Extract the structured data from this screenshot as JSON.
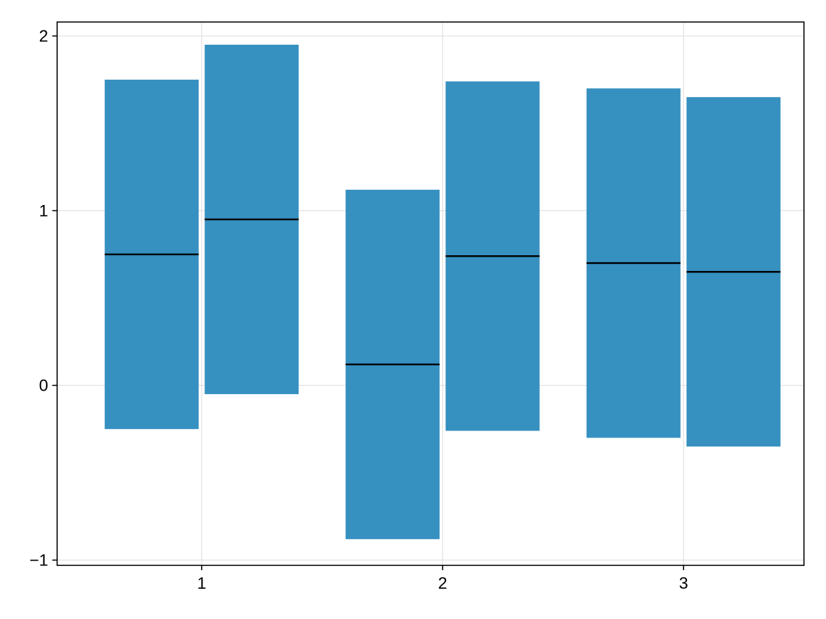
{
  "chart_data": {
    "type": "crossbar",
    "title": "",
    "xlabel": "",
    "ylabel": "",
    "xlim": [
      0.4,
      3.5
    ],
    "ylim": [
      -1.03,
      2.08
    ],
    "x_ticks": [
      1,
      2,
      3
    ],
    "x_tick_labels": [
      "1",
      "2",
      "3"
    ],
    "y_ticks": [
      -1,
      0,
      1,
      2
    ],
    "y_tick_labels": [
      "−1",
      "0",
      "1",
      "2"
    ],
    "grid": true,
    "bar_color": "#3690c0",
    "median_color": "#000000",
    "grid_color": "#e0e0e0",
    "boxes": [
      {
        "group": 1,
        "dodge": 1,
        "low": -0.25,
        "mid": 0.75,
        "high": 1.75
      },
      {
        "group": 1,
        "dodge": 2,
        "low": -0.05,
        "mid": 0.95,
        "high": 1.95
      },
      {
        "group": 2,
        "dodge": 1,
        "low": -0.88,
        "mid": 0.12,
        "high": 1.12
      },
      {
        "group": 2,
        "dodge": 2,
        "low": -0.26,
        "mid": 0.74,
        "high": 1.74
      },
      {
        "group": 3,
        "dodge": 1,
        "low": -0.3,
        "mid": 0.7,
        "high": 1.7
      },
      {
        "group": 3,
        "dodge": 2,
        "low": -0.35,
        "mid": 0.65,
        "high": 1.65
      }
    ]
  }
}
